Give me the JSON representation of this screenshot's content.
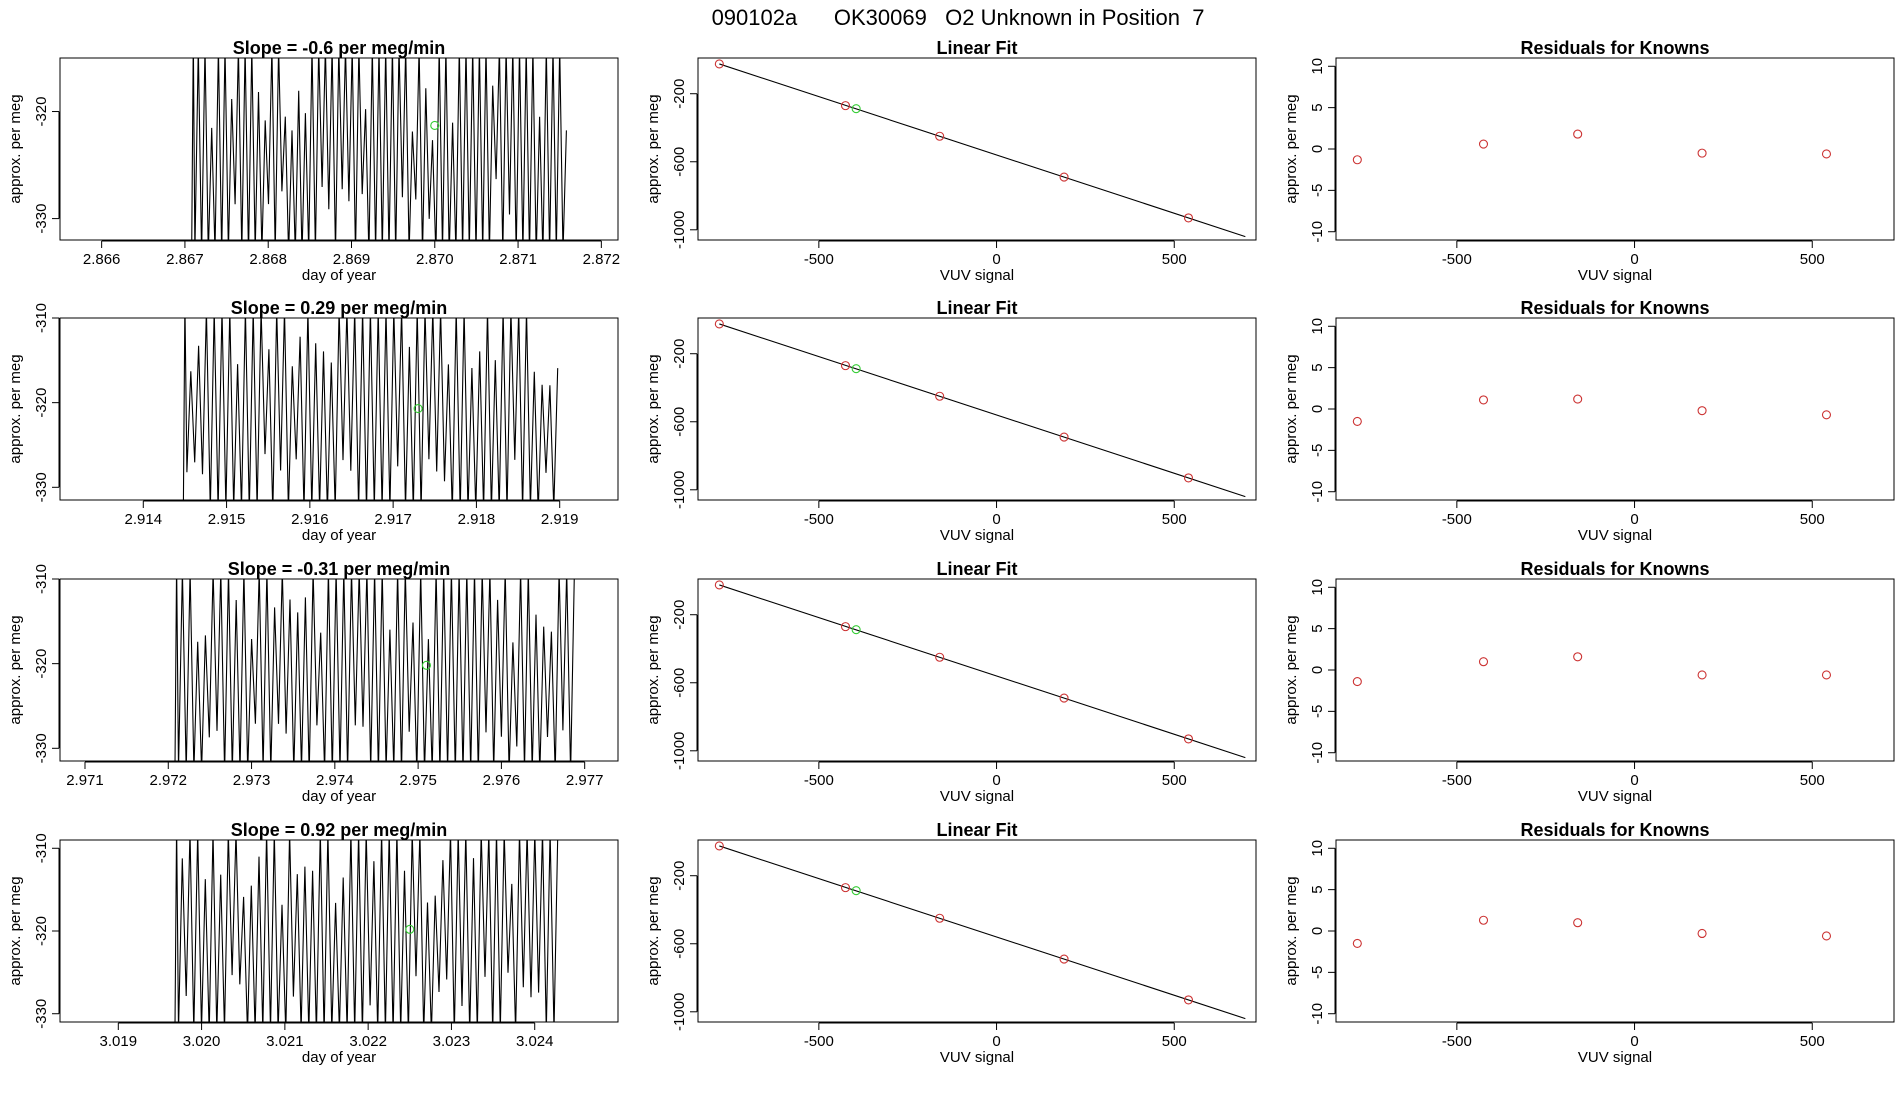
{
  "page_title": "090102a      OK30069   O2 Unknown in Position  7",
  "colors": {
    "trace": "#000000",
    "known_point": "#cc3333",
    "unknown_point": "#33cc33",
    "fit_line": "#000000"
  },
  "chart_data": [
    {
      "type": "line",
      "row": 0,
      "col": 0,
      "title": "Slope =  -0.6  per meg/min",
      "xlabel": "day of year",
      "ylabel": "approx. per meg",
      "xlim": [
        2.8655,
        2.8722
      ],
      "ylim": [
        -332,
        -315
      ],
      "xticks": [
        2.866,
        2.867,
        2.868,
        2.869,
        2.87,
        2.871,
        2.872
      ],
      "xtick_labels": [
        "2.866",
        "2.867",
        "2.868",
        "2.869",
        "2.870",
        "2.871",
        "2.872"
      ],
      "yticks": [
        -320,
        -330
      ],
      "ytick_labels": [
        "-320",
        "-330"
      ],
      "trace": {
        "start": 2.8671,
        "end": 2.8716,
        "cycles": 56,
        "low": -332,
        "high": -315,
        "seed": 3
      },
      "unknown_point": {
        "x": 2.87,
        "y": -321.3
      }
    },
    {
      "type": "scatter",
      "row": 0,
      "col": 1,
      "title": "Linear Fit",
      "xlabel": "VUV signal",
      "ylabel": "approx. per meg",
      "xlim": [
        -840,
        730
      ],
      "ylim": [
        -1060,
        10
      ],
      "xticks": [
        -500,
        0,
        500
      ],
      "xtick_labels": [
        "-500",
        "0",
        "500"
      ],
      "yticks": [
        -200,
        -600,
        -1000
      ],
      "ytick_labels": [
        "-200",
        "-600",
        "-1000"
      ],
      "knowns": [
        {
          "x": -780,
          "y": -25
        },
        {
          "x": -425,
          "y": -270
        },
        {
          "x": -160,
          "y": -450
        },
        {
          "x": 190,
          "y": -690
        },
        {
          "x": 540,
          "y": -930
        }
      ],
      "unknown_point": {
        "x": -395,
        "y": -288
      },
      "fit": {
        "x": [
          -780,
          700
        ],
        "y": [
          -25,
          -1040
        ]
      }
    },
    {
      "type": "scatter",
      "row": 0,
      "col": 2,
      "title": "Residuals for Knowns",
      "xlabel": "VUV signal",
      "ylabel": "approx. per meg",
      "xlim": [
        -840,
        730
      ],
      "ylim": [
        -11,
        11
      ],
      "xticks": [
        -500,
        0,
        500
      ],
      "xtick_labels": [
        "-500",
        "0",
        "500"
      ],
      "yticks": [
        10,
        5,
        0,
        -5,
        -10
      ],
      "ytick_labels": [
        "10",
        "5",
        "0",
        "-5",
        "-10"
      ],
      "knowns": [
        {
          "x": -780,
          "y": -1.3
        },
        {
          "x": -425,
          "y": 0.6
        },
        {
          "x": -160,
          "y": 1.8
        },
        {
          "x": 190,
          "y": -0.5
        },
        {
          "x": 540,
          "y": -0.6
        }
      ]
    },
    {
      "type": "line",
      "row": 1,
      "col": 0,
      "title": "Slope =  0.29  per meg/min",
      "xlabel": "day of year",
      "ylabel": "approx. per meg",
      "xlim": [
        2.913,
        2.9197
      ],
      "ylim": [
        -331.5,
        -310
      ],
      "xticks": [
        2.914,
        2.915,
        2.916,
        2.917,
        2.918,
        2.919
      ],
      "xtick_labels": [
        "2.914",
        "2.915",
        "2.916",
        "2.917",
        "2.918",
        "2.919"
      ],
      "yticks": [
        -310,
        -320,
        -330
      ],
      "ytick_labels": [
        "-310",
        "-320",
        "-330"
      ],
      "trace": {
        "start": 2.9145,
        "end": 2.919,
        "cycles": 48,
        "low": -331.5,
        "high": -310,
        "seed": 11
      },
      "unknown_point": {
        "x": 2.9173,
        "y": -320.7
      }
    },
    {
      "type": "scatter",
      "row": 1,
      "col": 1,
      "title": "Linear Fit",
      "xlabel": "VUV signal",
      "ylabel": "approx. per meg",
      "xlim": [
        -840,
        730
      ],
      "ylim": [
        -1060,
        10
      ],
      "xticks": [
        -500,
        0,
        500
      ],
      "xtick_labels": [
        "-500",
        "0",
        "500"
      ],
      "yticks": [
        -200,
        -600,
        -1000
      ],
      "ytick_labels": [
        "-200",
        "-600",
        "-1000"
      ],
      "knowns": [
        {
          "x": -780,
          "y": -25
        },
        {
          "x": -425,
          "y": -270
        },
        {
          "x": -160,
          "y": -450
        },
        {
          "x": 190,
          "y": -690
        },
        {
          "x": 540,
          "y": -930
        }
      ],
      "unknown_point": {
        "x": -395,
        "y": -288
      },
      "fit": {
        "x": [
          -780,
          700
        ],
        "y": [
          -25,
          -1040
        ]
      }
    },
    {
      "type": "scatter",
      "row": 1,
      "col": 2,
      "title": "Residuals for Knowns",
      "xlabel": "VUV signal",
      "ylabel": "approx. per meg",
      "xlim": [
        -840,
        730
      ],
      "ylim": [
        -11,
        11
      ],
      "xticks": [
        -500,
        0,
        500
      ],
      "xtick_labels": [
        "-500",
        "0",
        "500"
      ],
      "yticks": [
        10,
        5,
        0,
        -5,
        -10
      ],
      "ytick_labels": [
        "10",
        "5",
        "0",
        "-5",
        "-10"
      ],
      "knowns": [
        {
          "x": -780,
          "y": -1.5
        },
        {
          "x": -425,
          "y": 1.1
        },
        {
          "x": -160,
          "y": 1.2
        },
        {
          "x": 190,
          "y": -0.2
        },
        {
          "x": 540,
          "y": -0.7
        }
      ]
    },
    {
      "type": "line",
      "row": 2,
      "col": 0,
      "title": "Slope =  -0.31  per meg/min",
      "xlabel": "day of year",
      "ylabel": "approx. per meg",
      "xlim": [
        2.9707,
        2.9774
      ],
      "ylim": [
        -331.5,
        -310
      ],
      "xticks": [
        2.971,
        2.972,
        2.973,
        2.974,
        2.975,
        2.976,
        2.977
      ],
      "xtick_labels": [
        "2.971",
        "2.972",
        "2.973",
        "2.974",
        "2.975",
        "2.976",
        "2.977"
      ],
      "yticks": [
        -310,
        -320,
        -330
      ],
      "ytick_labels": [
        "-310",
        "-320",
        "-330"
      ],
      "trace": {
        "start": 2.9721,
        "end": 2.9769,
        "cycles": 52,
        "low": -331.5,
        "high": -310,
        "seed": 23
      },
      "unknown_point": {
        "x": 2.9751,
        "y": -320.2
      }
    },
    {
      "type": "scatter",
      "row": 2,
      "col": 1,
      "title": "Linear Fit",
      "xlabel": "VUV signal",
      "ylabel": "approx. per meg",
      "xlim": [
        -840,
        730
      ],
      "ylim": [
        -1060,
        10
      ],
      "xticks": [
        -500,
        0,
        500
      ],
      "xtick_labels": [
        "-500",
        "0",
        "500"
      ],
      "yticks": [
        -200,
        -600,
        -1000
      ],
      "ytick_labels": [
        "-200",
        "-600",
        "-1000"
      ],
      "knowns": [
        {
          "x": -780,
          "y": -25
        },
        {
          "x": -425,
          "y": -270
        },
        {
          "x": -160,
          "y": -450
        },
        {
          "x": 190,
          "y": -690
        },
        {
          "x": 540,
          "y": -930
        }
      ],
      "unknown_point": {
        "x": -395,
        "y": -288
      },
      "fit": {
        "x": [
          -780,
          700
        ],
        "y": [
          -25,
          -1040
        ]
      }
    },
    {
      "type": "scatter",
      "row": 2,
      "col": 2,
      "title": "Residuals for Knowns",
      "xlabel": "VUV signal",
      "ylabel": "approx. per meg",
      "xlim": [
        -840,
        730
      ],
      "ylim": [
        -11,
        11
      ],
      "xticks": [
        -500,
        0,
        500
      ],
      "xtick_labels": [
        "-500",
        "0",
        "500"
      ],
      "yticks": [
        10,
        5,
        0,
        -5,
        -10
      ],
      "ytick_labels": [
        "10",
        "5",
        "0",
        "-5",
        "-10"
      ],
      "knowns": [
        {
          "x": -780,
          "y": -1.4
        },
        {
          "x": -425,
          "y": 1.0
        },
        {
          "x": -160,
          "y": 1.6
        },
        {
          "x": 190,
          "y": -0.6
        },
        {
          "x": 540,
          "y": -0.6
        }
      ]
    },
    {
      "type": "line",
      "row": 3,
      "col": 0,
      "title": "Slope =  0.92  per meg/min",
      "xlabel": "day of year",
      "ylabel": "approx. per meg",
      "xlim": [
        3.0183,
        3.025
      ],
      "ylim": [
        -331,
        -309
      ],
      "xticks": [
        3.019,
        3.02,
        3.021,
        3.022,
        3.023,
        3.024
      ],
      "xtick_labels": [
        "3.019",
        "3.020",
        "3.021",
        "3.022",
        "3.023",
        "3.024"
      ],
      "yticks": [
        -310,
        -320,
        -330
      ],
      "ytick_labels": [
        "-310",
        "-320",
        "-330"
      ],
      "trace": {
        "start": 3.0197,
        "end": 3.0243,
        "cycles": 50,
        "low": -331,
        "high": -309,
        "seed": 37
      },
      "unknown_point": {
        "x": 3.0225,
        "y": -319.8
      }
    },
    {
      "type": "scatter",
      "row": 3,
      "col": 1,
      "title": "Linear Fit",
      "xlabel": "VUV signal",
      "ylabel": "approx. per meg",
      "xlim": [
        -840,
        730
      ],
      "ylim": [
        -1060,
        10
      ],
      "xticks": [
        -500,
        0,
        500
      ],
      "xtick_labels": [
        "-500",
        "0",
        "500"
      ],
      "yticks": [
        -200,
        -600,
        -1000
      ],
      "ytick_labels": [
        "-200",
        "-600",
        "-1000"
      ],
      "knowns": [
        {
          "x": -780,
          "y": -25
        },
        {
          "x": -425,
          "y": -270
        },
        {
          "x": -160,
          "y": -450
        },
        {
          "x": 190,
          "y": -690
        },
        {
          "x": 540,
          "y": -930
        }
      ],
      "unknown_point": {
        "x": -395,
        "y": -288
      },
      "fit": {
        "x": [
          -780,
          700
        ],
        "y": [
          -25,
          -1040
        ]
      }
    },
    {
      "type": "scatter",
      "row": 3,
      "col": 2,
      "title": "Residuals for Knowns",
      "xlabel": "VUV signal",
      "ylabel": "approx. per meg",
      "xlim": [
        -840,
        730
      ],
      "ylim": [
        -11,
        11
      ],
      "xticks": [
        -500,
        0,
        500
      ],
      "xtick_labels": [
        "-500",
        "0",
        "500"
      ],
      "yticks": [
        10,
        5,
        0,
        -5,
        -10
      ],
      "ytick_labels": [
        "10",
        "5",
        "0",
        "-5",
        "-10"
      ],
      "knowns": [
        {
          "x": -780,
          "y": -1.5
        },
        {
          "x": -425,
          "y": 1.3
        },
        {
          "x": -160,
          "y": 1.0
        },
        {
          "x": 190,
          "y": -0.3
        },
        {
          "x": 540,
          "y": -0.6
        }
      ]
    }
  ]
}
